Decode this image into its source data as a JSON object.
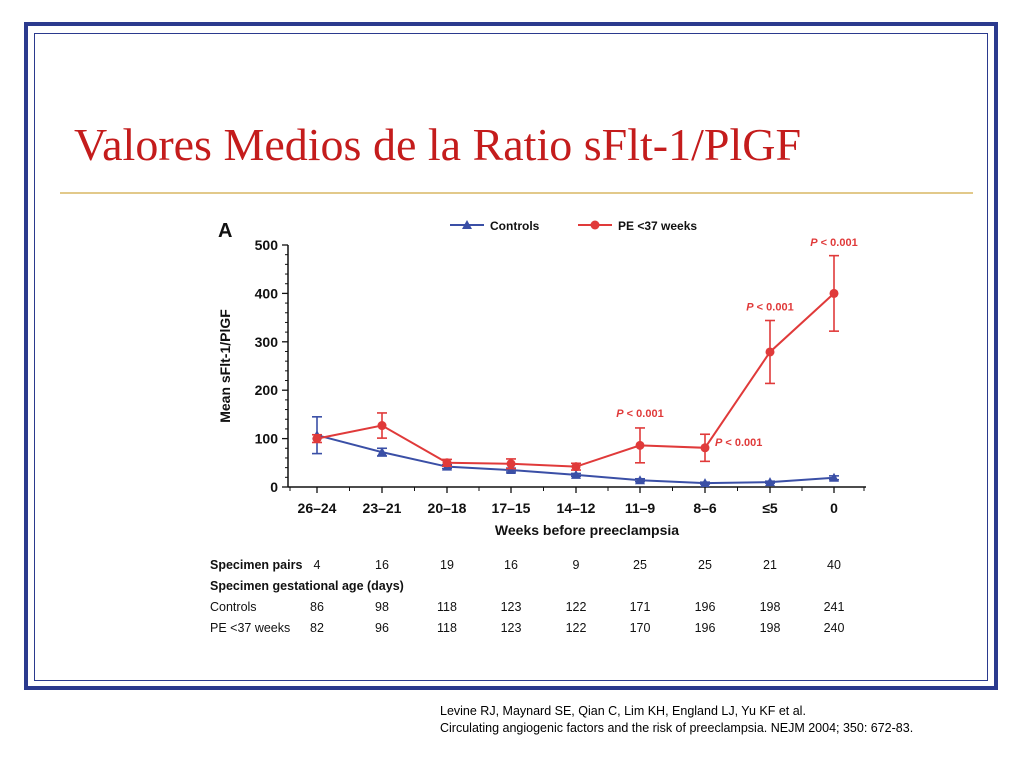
{
  "slide": {
    "title": "Valores Medios de la Ratio sFlt-1/PlGF",
    "citation_line1": "Levine RJ, Maynard SE, Qian C, Lim KH, England LJ, Yu KF et al.",
    "citation_line2": "Circulating angiogenic factors and the risk of preeclampsia. NEJM 2004; 350: 672-83."
  },
  "colors": {
    "frame": "#2b3a8e",
    "title": "#c41c1c",
    "rule": "#e2c98a",
    "controls": "#3a4fa6",
    "pe": "#e03a3a"
  },
  "chart_data": {
    "type": "line",
    "panel_label": "A",
    "ylabel": "Mean sFlt-1/PlGF",
    "xlabel": "Weeks before preeclampsia",
    "ylim": [
      0,
      500
    ],
    "yticks": [
      0,
      100,
      200,
      300,
      400,
      500
    ],
    "categories": [
      "26–24",
      "23–21",
      "20–18",
      "17–15",
      "14–12",
      "11–9",
      "8–6",
      "≤5",
      "0"
    ],
    "legend_position": "top",
    "grid": false,
    "series": [
      {
        "name": "Controls",
        "marker": "triangle",
        "color": "#3a4fa6",
        "values": [
          107,
          72,
          42,
          35,
          25,
          14,
          8,
          10,
          19
        ],
        "error": [
          38,
          8,
          4,
          4,
          3,
          3,
          2,
          2,
          4
        ]
      },
      {
        "name": "PE <37 weeks",
        "marker": "circle",
        "color": "#e03a3a",
        "values": [
          100,
          127,
          50,
          48,
          42,
          86,
          81,
          279,
          400
        ],
        "error": [
          8,
          26,
          7,
          10,
          7,
          36,
          28,
          65,
          78
        ]
      }
    ],
    "annotations": [
      {
        "text": "P < 0.001",
        "category_index": 5,
        "y": 145,
        "anchor": "middle"
      },
      {
        "text": "P < 0.001",
        "category_index": 6,
        "y": 85,
        "anchor": "start"
      },
      {
        "text": "P < 0.001",
        "category_index": 7,
        "y": 365,
        "anchor": "middle"
      },
      {
        "text": "P < 0.001",
        "category_index": 8,
        "y": 498,
        "anchor": "middle"
      }
    ],
    "table": {
      "rows": [
        {
          "label": "Specimen pairs",
          "bold": true,
          "values": [
            "4",
            "16",
            "19",
            "16",
            "9",
            "25",
            "25",
            "21",
            "40"
          ]
        },
        {
          "label": "Specimen gestational age (days)",
          "bold": true,
          "values": []
        },
        {
          "label": "Controls",
          "bold": false,
          "values": [
            "86",
            "98",
            "118",
            "123",
            "122",
            "171",
            "196",
            "198",
            "241"
          ]
        },
        {
          "label": "PE <37 weeks",
          "bold": false,
          "values": [
            "82",
            "96",
            "118",
            "123",
            "122",
            "170",
            "196",
            "198",
            "240"
          ]
        }
      ]
    }
  }
}
